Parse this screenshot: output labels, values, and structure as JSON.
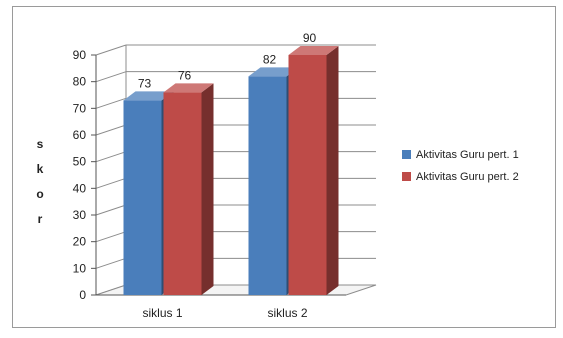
{
  "chart_data": {
    "type": "bar",
    "title": "",
    "xlabel": "",
    "ylabel": "s k o r",
    "ylim": [
      0,
      90
    ],
    "yticks": [
      0,
      10,
      20,
      30,
      40,
      50,
      60,
      70,
      80,
      90
    ],
    "categories": [
      "siklus 1",
      "siklus 2"
    ],
    "series": [
      {
        "name": "Aktivitas Guru pert. 1",
        "values": [
          73,
          82
        ],
        "color": "#4a7ebb"
      },
      {
        "name": "Aktivitas Guru pert. 2",
        "values": [
          76,
          90
        ],
        "color": "#be4b48"
      }
    ],
    "grid": true,
    "legend": "right",
    "style": "3d-column"
  }
}
